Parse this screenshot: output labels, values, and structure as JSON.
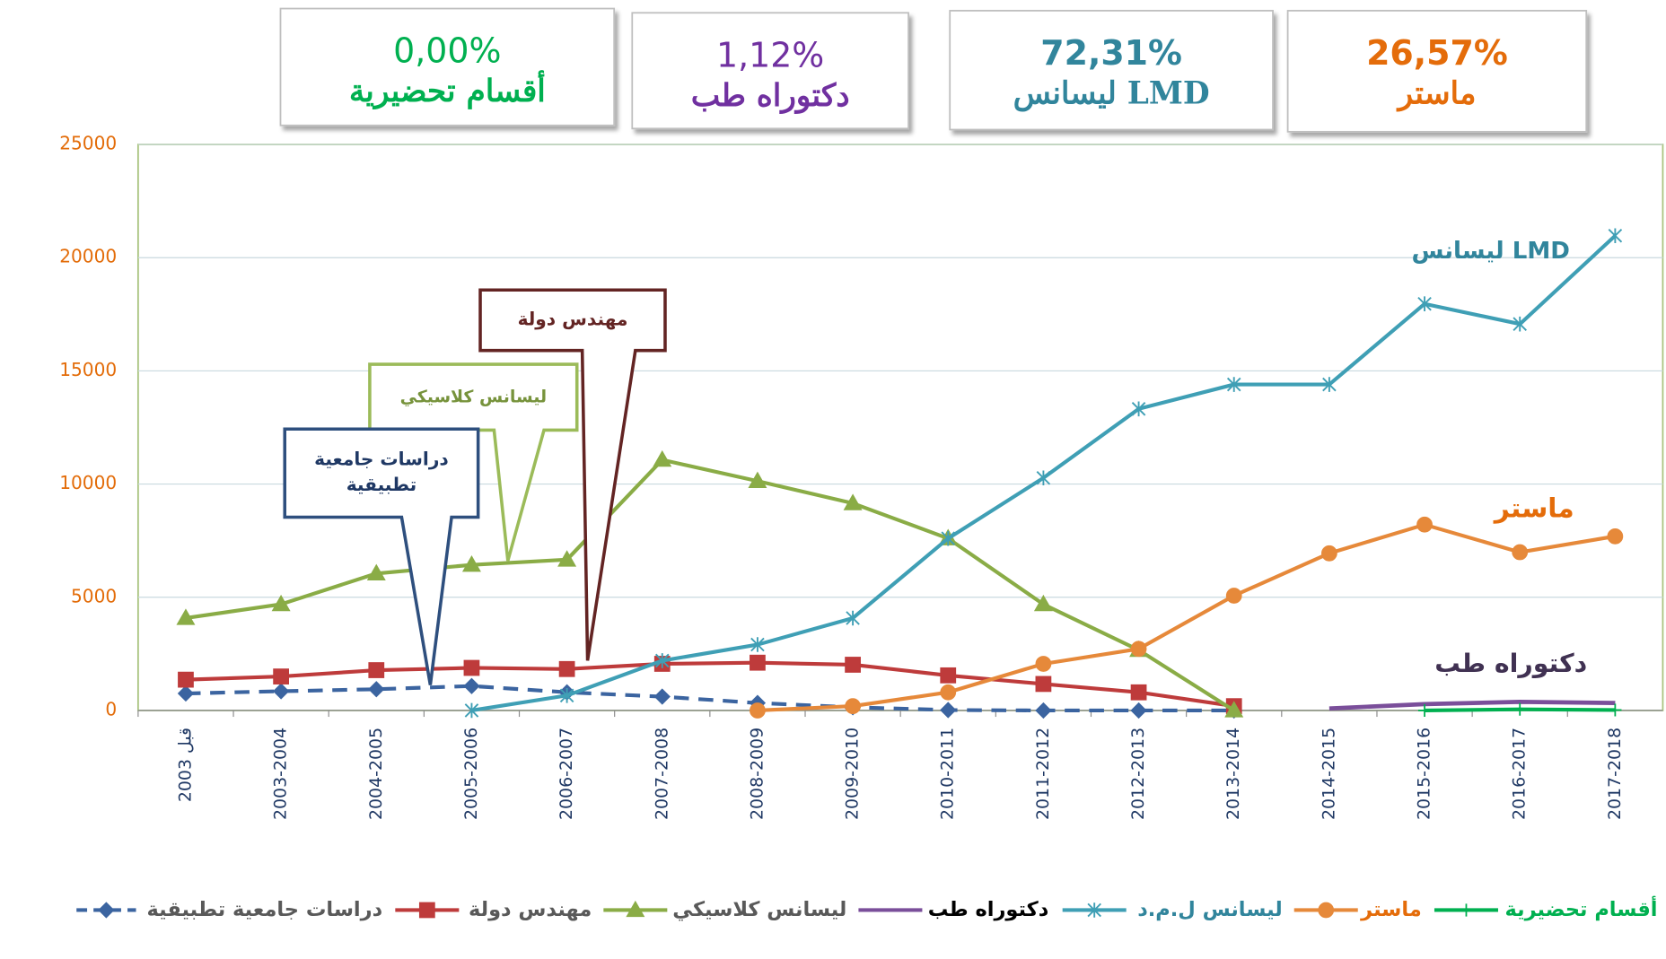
{
  "chart_data": {
    "type": "line",
    "summary_boxes": [
      {
        "percent": "0,00%",
        "label": "أقسام تحضيرية",
        "color": "#00b050"
      },
      {
        "percent": "1,12%",
        "label": "دكتوراه طب",
        "color": "#7030a0"
      },
      {
        "percent": "72,31%",
        "label": "ليسانس LMD",
        "color": "#31859c"
      },
      {
        "percent": "26,57%",
        "label": "ماستر",
        "color": "#e46c0a"
      }
    ],
    "annotations": [
      {
        "lines": [
          "مهندس دولة"
        ],
        "color": "#632423"
      },
      {
        "lines": [
          "ليسانس كلاسيكي"
        ],
        "color": "#77933c"
      },
      {
        "lines": [
          "دراسات جامعية",
          "تطبيقية"
        ],
        "color": "#1f3864"
      },
      {
        "lines": [
          "ليسانس LMD"
        ],
        "color": "#31859c"
      },
      {
        "lines": [
          "ماستر"
        ],
        "color": "#e46c0a"
      },
      {
        "lines": [
          "دكتوراه طب"
        ],
        "color": "#403152"
      }
    ],
    "categories": [
      "قبل 2003",
      "2003-2004",
      "2004-2005",
      "2005-2006",
      "2006-2007",
      "2007-2008",
      "2008-2009",
      "2009-2010",
      "2010-2011",
      "2011-2012",
      "2012-2013",
      "2013-2014",
      "2014-2015",
      "2015-2016",
      "2016-2017",
      "2017-2018"
    ],
    "ylim": [
      0,
      25000
    ],
    "yticks": [
      0,
      5000,
      10000,
      15000,
      20000,
      25000
    ],
    "grid": true,
    "series": [
      {
        "name": "دراسات جامعية تطبيقية",
        "color": "#3b64a0",
        "legend_color": "#595959",
        "marker": "diamond",
        "dashed": true,
        "values": [
          750,
          850,
          940,
          1080,
          800,
          610,
          330,
          140,
          20,
          0,
          0,
          0,
          null,
          null,
          null,
          null
        ]
      },
      {
        "name": "مهندس دولة",
        "color": "#be3b3b",
        "legend_color": "#595959",
        "marker": "square",
        "dashed": false,
        "values": [
          1360,
          1500,
          1780,
          1880,
          1830,
          2060,
          2110,
          2020,
          1550,
          1170,
          800,
          190,
          null,
          null,
          null,
          null
        ]
      },
      {
        "name": "ليسانس كلاسيكي",
        "color": "#8aac46",
        "legend_color": "#595959",
        "marker": "triangle",
        "dashed": false,
        "values": [
          4080,
          4690,
          6050,
          6430,
          6660,
          11070,
          10130,
          9150,
          7600,
          4690,
          2670,
          0,
          null,
          null,
          null,
          null
        ]
      },
      {
        "name": "دكتوراه طب",
        "color": "#7a4e9a",
        "legend_color": "#000000",
        "marker": "none",
        "dashed": false,
        "values": [
          null,
          null,
          null,
          null,
          null,
          null,
          null,
          null,
          null,
          null,
          null,
          null,
          90,
          280,
          380,
          330
        ]
      },
      {
        "name": "ليسانس  ل.م.د",
        "color": "#3f9fb5",
        "legend_color": "#31859c",
        "marker": "star",
        "dashed": false,
        "values": [
          null,
          null,
          null,
          0,
          660,
          2200,
          2910,
          4080,
          7600,
          10270,
          13320,
          14400,
          14400,
          17960,
          17070,
          20970
        ]
      },
      {
        "name": "ماستر",
        "color": "#e6893a",
        "legend_color": "#e46c0a",
        "marker": "circle",
        "dashed": false,
        "values": [
          null,
          null,
          null,
          null,
          null,
          null,
          0,
          190,
          800,
          2060,
          2720,
          5070,
          6940,
          8210,
          6990,
          7690
        ]
      },
      {
        "name": "أقسام تحضيرية",
        "color": "#00b050",
        "legend_color": "#00b050",
        "marker": "plus",
        "dashed": false,
        "values": [
          null,
          null,
          null,
          null,
          null,
          null,
          null,
          null,
          null,
          null,
          null,
          null,
          null,
          0,
          50,
          20
        ]
      }
    ]
  }
}
